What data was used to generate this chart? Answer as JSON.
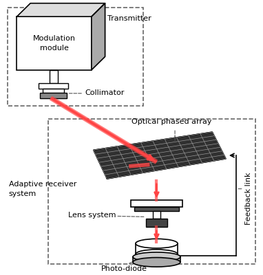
{
  "bg_color": "#ffffff",
  "beam_color": "#ff4444",
  "dash_color": "#666666",
  "black": "#000000",
  "gray_light": "#cccccc",
  "gray_dark": "#555555",
  "opa_fill": "#c8c0a0",
  "opa_grid": "#555555",
  "transmitter_label": "Transmitter",
  "receiver_label": "Adaptive receiver\nsystem",
  "mod_label": "Modulation\nmodule",
  "collimator_label": "Collimator",
  "opa_label": "Optical phased array",
  "lens_label": "Lens system",
  "pd_label": "Photo-diode",
  "feedback_label": "Feedback link"
}
